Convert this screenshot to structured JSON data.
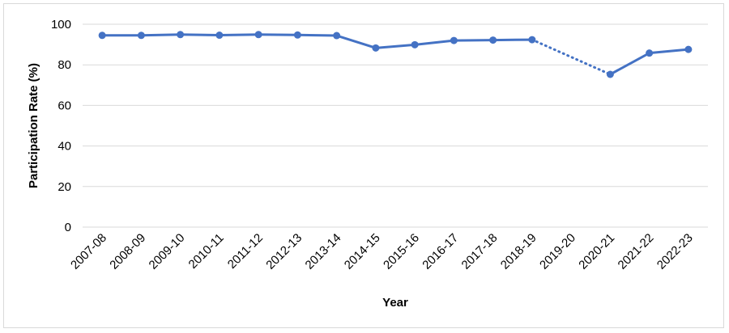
{
  "chart_data": {
    "type": "line",
    "title": "",
    "xlabel": "Year",
    "ylabel": "Participation Rate (%)",
    "ylim": [
      0,
      100
    ],
    "yticks": [
      0,
      20,
      40,
      60,
      80,
      100
    ],
    "grid": true,
    "legend": "none",
    "categories": [
      "2007-08",
      "2008-09",
      "2009-10",
      "2010-11",
      "2011-12",
      "2012-13",
      "2013-14",
      "2014-15",
      "2015-16",
      "2016-17",
      "2017-18",
      "2018-19",
      "2019-20",
      "2020-21",
      "2021-22",
      "2022-23"
    ],
    "series": [
      {
        "values": [
          94.5,
          94.5,
          94.9,
          94.6,
          94.9,
          94.7,
          94.4,
          88.3,
          89.9,
          92.0,
          92.2,
          92.4,
          null,
          75.3,
          85.8,
          87.6
        ],
        "color": "#4472c4",
        "gap_style": "dotted"
      }
    ]
  }
}
